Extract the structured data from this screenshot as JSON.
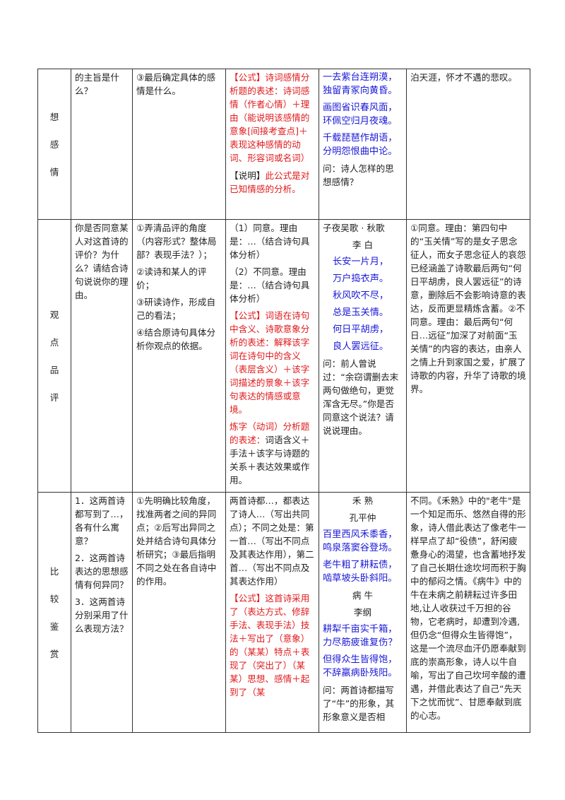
{
  "rows": [
    {
      "category": [
        "想",
        "感",
        "情"
      ],
      "question": "的主旨是什么？",
      "steps": [
        "③最后确定具体的感情是什么。"
      ],
      "formula": {
        "tag": "【公式】",
        "text": "诗词感情分析题的表述：诗词感情（作者心情）＋理由（能说明该感情的意象[间接考查点]＋表现这种感情的动词、形容词或名词）",
        "note_tag": "【说明】",
        "note_text": "此公式是对已知情感的分析。"
      },
      "poem_lines": [
        "一去紫台连朔漠，独留青冢向黄昏。",
        "画图省识春风面，环佩空归月夜魂。",
        "千载琵琶作胡语，分明怨恨曲中论。"
      ],
      "poem_question": "问：诗人怎样的思想感情？",
      "answer": "泊天涯，怀才不遇的悲叹。"
    },
    {
      "category": [
        "观",
        "点",
        "品",
        "评"
      ],
      "question": "你是否同意某人对这首诗的评价？为什么？请结合诗句说说你的理由。",
      "steps": [
        "①弄清品评的角度（内容形式？整体局部？表现手法？）；",
        "②读诗和某人的评价；",
        "③研读诗作，形成自己的看法；",
        "④结合原诗句具体分析你观点的依据。"
      ],
      "answers_format": [
        "（1）同意。理由是：…（结合诗句具体分析）",
        "（2）不同意。理由是：…（结合诗句具体分析）"
      ],
      "formula": {
        "tag": "【公式】",
        "text": "词语在诗句中含义、诗歌意象分析的表述：解释该字词在诗句中的含义（表层含义）＋该字词描述的景象＋该字句表达的情感或意境。",
        "extra_red": "炼字（动词）分析题的表述：",
        "extra_black": "词语含义＋手法＋该字与诗题的关系＋表达效果或作用。"
      },
      "poem_title": "子夜吴歌 · 秋歌",
      "poem_author": "李 白",
      "poem_lines": [
        "长安一片月，",
        "万户捣衣声。",
        "秋风吹不尽，",
        "总是玉关情。",
        "何日平胡虏，",
        "良人罢远征。"
      ],
      "poem_question": "问：前人曾说过：“余窃谓删去末两句做绝句，更觉浑含无尽。”你是否同意这个说法？请说说理由。",
      "answer": "①同意。理由：第四句中的“玉关情”写的是女子思念征人，而女子思念征人的哀怨已经涵盖了诗歌最后两句“何日平胡虏，良人罢远征”的诗意，删除后不会影响诗意的表达，反而更显精炼含蓄。②不同意。理由：最后两句“何日…远征”加深了对前面“玉关情”的内容的表达，由亲人之情上升到家国之爱，扩展了诗歌的内容，升华了诗歌的境界。"
    },
    {
      "category": [
        "比",
        "较",
        "鉴",
        "赏"
      ],
      "question": [
        "1．这两首诗都写到了…，各有什么寓意？",
        "2．这两首诗表达的思想感情有何异同？",
        "3．这两首诗分别采用了什么表现方法？"
      ],
      "steps": [
        "①先明确比较角度，找准两者之间的异同点；②后写出异同之处并结合诗句具体分析研究；③最后指明不同之处在各自诗中的作用。"
      ],
      "answers_format": "两首诗都…，都表达了诗人…（写出共同点）；不同之处是：第一首…（写出不同点及其表达作用），第二首…（写出不同点及其表达作用）",
      "formula": {
        "tag": "【公式】",
        "text": "这首诗采用了（表达方式、修辞手法、表现手法）技法＋写出了（意象）的（某某）特点＋表现了（突出了）（某某）思想、感情＋起到了（某"
      },
      "poem1_title": "禾 熟",
      "poem1_author": "孔平仲",
      "poem1_lines": [
        "百里西风禾黍香，鸣泉落窦谷登场。",
        "老牛粗了耕耘债，啮草坡头卧斜阳。"
      ],
      "poem2_title": "病 牛",
      "poem2_author": "李纲",
      "poem2_lines": [
        "耕犁千亩实千箱，力尽筋疲谁复伤？",
        "但得众生皆得饱，不辞羸病卧残阳。"
      ],
      "poem_question": "问：两首诗都描写了“牛”的形象，其形象意义是否相",
      "answer": "不同。《禾熟》中的\"老牛\"是一个知足而乐、悠然自得的形象，诗人借此表达了像老牛一样早点了却“役债”，舒闲疲惫身心的渴望，也含蓄地抒发了自己长期仕途坎坷而积于胸中的郁闷之情。《病牛》中的牛在未病之前耕耘过许多田地,让人收获过千万担的谷物，它老病时，却遭到冷遇,但仍念“但得众生皆得饱”，这是一个流尽血汗仍愿奉献到底的崇高形象，诗人以牛自喻，写出了自己坎坷辛酸的遭遇，并借此表达了自己“先天下之忧而忧”、甘愿奉献到底的心志。"
    }
  ]
}
